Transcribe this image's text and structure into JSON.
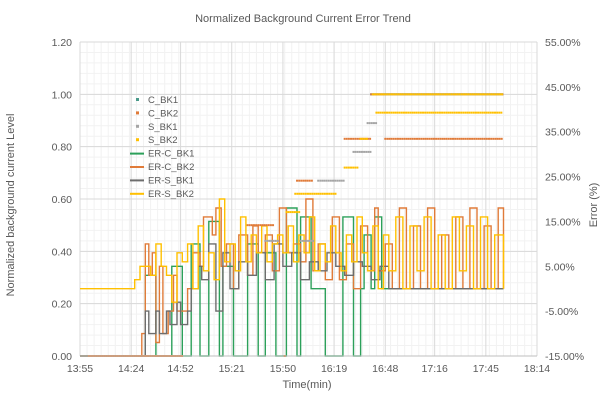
{
  "chart_data": {
    "type": "line",
    "title": "Normalized Background Current Error Trend",
    "xlabel": "Time(min)",
    "ylabel": "Normalized background current Level",
    "y2label": "Error (%)",
    "x_ticks": [
      "13:55",
      "14:24",
      "14:52",
      "15:21",
      "15:50",
      "16:19",
      "16:48",
      "17:16",
      "17:45",
      "18:14"
    ],
    "x_tick_minutes": [
      835,
      864,
      892,
      921,
      950,
      979,
      1008,
      1036,
      1065,
      1094
    ],
    "xlim_minutes": [
      835,
      1094
    ],
    "ylim": [
      0,
      1.2
    ],
    "y_ticks": [
      "0.00",
      "0.20",
      "0.40",
      "0.60",
      "0.80",
      "1.00",
      "1.20"
    ],
    "y2lim": [
      -15,
      55
    ],
    "y2_ticks": [
      "-15.00%",
      "-5.00%",
      "5.00%",
      "15.00%",
      "25.00%",
      "35.00%",
      "45.00%",
      "55.00%"
    ],
    "grid": true,
    "legend_position": "upper-left-inside",
    "colors": {
      "C_BK1": "#4a9a8a",
      "C_BK2": "#e07b39",
      "S_BK1": "#a5a5a5",
      "S_BK2": "#ffc000",
      "ER-C_BK1": "#2ca05a",
      "ER-C_BK2": "#e07b39",
      "ER-S_BK1": "#6d6d6d",
      "ER-S_BK2": "#ffc000"
    },
    "scatter_series": [
      {
        "name": "C_BK1",
        "segments": [
          [
            840,
            893,
            0.0
          ],
          [
            1000,
            1075,
            1.0
          ]
        ]
      },
      {
        "name": "C_BK2",
        "segments": [
          [
            840,
            893,
            0.0
          ],
          [
            951,
            952,
            0.0
          ],
          [
            930,
            945,
            0.5
          ],
          [
            958,
            967,
            0.67
          ],
          [
            985,
            1000,
            0.83
          ],
          [
            1008,
            1075,
            0.83
          ],
          [
            1000,
            1075,
            1.0
          ]
        ]
      },
      {
        "name": "S_BK1",
        "segments": [
          [
            940,
            948,
            0.44
          ],
          [
            960,
            968,
            0.44
          ],
          [
            970,
            985,
            0.67
          ],
          [
            990,
            1000,
            0.78
          ],
          [
            998,
            1003,
            0.89
          ],
          [
            1008,
            1075,
            1.0
          ]
        ]
      },
      {
        "name": "S_BK2",
        "segments": [
          [
            952,
            960,
            0.55
          ],
          [
            957,
            980,
            0.62
          ],
          [
            985,
            993,
            0.72
          ],
          [
            994,
            998,
            0.83
          ],
          [
            1003,
            1075,
            0.93
          ],
          [
            1001,
            1075,
            1.0
          ]
        ]
      }
    ],
    "line_series": [
      {
        "name": "ER-C_BK1",
        "x": [
          835,
          870,
          872,
          876,
          878,
          884,
          887,
          889,
          893,
          896,
          898,
          902,
          903,
          908,
          910,
          914,
          916,
          920,
          922,
          928,
          930,
          934,
          936,
          940,
          942,
          946,
          948,
          952,
          954,
          958,
          960,
          964,
          966,
          972,
          974,
          982,
          984,
          988,
          990,
          994,
          996,
          1000,
          1002,
          1006,
          1008,
          1075
        ],
        "y": [
          -15,
          -15,
          3,
          3,
          -15,
          -15,
          5,
          5,
          -15,
          -15,
          10,
          10,
          -15,
          15,
          15,
          -15,
          5,
          5,
          -15,
          -15,
          10,
          10,
          -15,
          8,
          8,
          -15,
          -15,
          18,
          18,
          -15,
          16,
          16,
          0,
          0,
          -15,
          -15,
          16,
          16,
          -15,
          0,
          12,
          0,
          16,
          0,
          0,
          0
        ]
      },
      {
        "name": "ER-C_BK2",
        "x": [
          835,
          869,
          870,
          872,
          874,
          876,
          878,
          880,
          882,
          885,
          888,
          890,
          893,
          896,
          899,
          903,
          905,
          910,
          912,
          915,
          918,
          922,
          925,
          930,
          933,
          936,
          940,
          944,
          948,
          952,
          956,
          960,
          963,
          967,
          970,
          974,
          978,
          982,
          986,
          990,
          994,
          998,
          1002,
          1004,
          1008,
          1012,
          1016,
          1020,
          1024,
          1028,
          1032,
          1036,
          1040,
          1044,
          1048,
          1052,
          1056,
          1060,
          1064,
          1068,
          1072,
          1075
        ],
        "y": [
          -15,
          -15,
          -10,
          10,
          3,
          8,
          -12,
          5,
          -10,
          -5,
          3,
          -5,
          -5,
          0,
          8,
          5,
          16,
          12,
          18,
          5,
          10,
          0,
          12,
          3,
          14,
          8,
          12,
          4,
          18,
          8,
          10,
          6,
          20,
          4,
          10,
          2,
          16,
          2,
          10,
          0,
          14,
          4,
          18,
          4,
          10,
          0,
          18,
          0,
          14,
          0,
          18,
          0,
          12,
          0,
          16,
          0,
          18,
          0,
          14,
          0,
          18,
          0
        ]
      },
      {
        "name": "ER-S_BK1",
        "x": [
          835,
          869,
          872,
          874,
          878,
          880,
          884,
          886,
          890,
          892,
          896,
          898,
          902,
          904,
          908,
          912,
          916,
          920,
          925,
          930,
          935,
          940,
          945,
          950,
          955,
          960,
          965,
          970,
          975,
          980,
          985,
          990,
          995,
          1000,
          1005,
          1010,
          1075
        ],
        "y": [
          -15,
          -15,
          -5,
          -10,
          -5,
          -10,
          -5,
          -8,
          -3,
          -8,
          -5,
          0,
          5,
          2,
          10,
          -5,
          8,
          0,
          6,
          3,
          8,
          2,
          10,
          5,
          8,
          2,
          6,
          4,
          8,
          5,
          3,
          6,
          5,
          2,
          5,
          0,
          0
        ]
      },
      {
        "name": "ER-S_BK2",
        "x": [
          835,
          860,
          866,
          869,
          872,
          875,
          878,
          881,
          884,
          887,
          890,
          893,
          896,
          899,
          902,
          905,
          908,
          911,
          914,
          917,
          920,
          923,
          926,
          929,
          932,
          935,
          938,
          941,
          944,
          947,
          950,
          953,
          956,
          959,
          962,
          965,
          968,
          971,
          974,
          977,
          980,
          983,
          986,
          989,
          992,
          995,
          998,
          1001,
          1004,
          1007,
          1010,
          1014,
          1018,
          1022,
          1026,
          1030,
          1034,
          1038,
          1042,
          1046,
          1050,
          1054,
          1058,
          1062,
          1066,
          1070,
          1075
        ],
        "y": [
          0,
          0,
          2,
          5,
          5,
          3,
          10,
          5,
          3,
          -3,
          8,
          6,
          10,
          0,
          14,
          4,
          8,
          2,
          20,
          6,
          10,
          4,
          16,
          6,
          12,
          8,
          14,
          6,
          10,
          12,
          8,
          14,
          6,
          12,
          8,
          16,
          4,
          10,
          6,
          14,
          8,
          4,
          12,
          6,
          16,
          8,
          4,
          14,
          0,
          12,
          4,
          16,
          0,
          14,
          4,
          16,
          0,
          12,
          0,
          16,
          4,
          14,
          0,
          16,
          0,
          12,
          0
        ]
      }
    ],
    "legend": [
      "C_BK1",
      "C_BK2",
      "S_BK1",
      "S_BK2",
      "ER-C_BK1",
      "ER-C_BK2",
      "ER-S_BK1",
      "ER-S_BK2"
    ]
  }
}
